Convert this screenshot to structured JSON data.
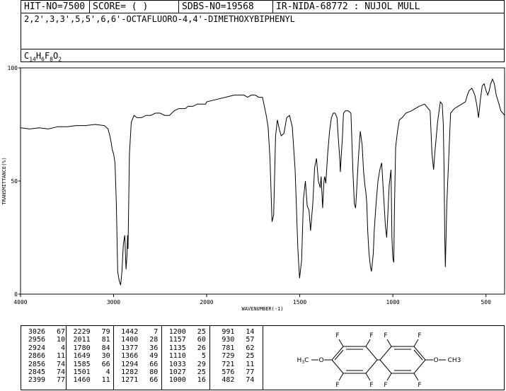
{
  "header": {
    "hit_no": "HIT-NO=7500",
    "score": "SCORE=  (   )",
    "sdbs_no": "SDBS-NO=19568",
    "ir_code": "IR-NIDA-68772 : NUJOL MULL",
    "compound_name": "2,2',3,3',5,5',6,6'-OCTAFLUORO-4,4'-DIMETHOXYBIPHENYL",
    "formula": {
      "c": "C",
      "c_n": "14",
      "h": "H",
      "h_n": "6",
      "f": "F",
      "f_n": "8",
      "o": "O",
      "o_n": "2"
    }
  },
  "chart_data": {
    "type": "line",
    "xlabel": "WAVENUMBER(-1)",
    "ylabel": "TRANSMITTANCE(%)",
    "xlim": [
      4000,
      400
    ],
    "ylim": [
      0,
      100
    ],
    "x_ticks": [
      "4000",
      "3000",
      "2000",
      "1500",
      "1000",
      "500"
    ],
    "x_tick_values": [
      4000,
      3000,
      2000,
      1500,
      1000,
      500
    ],
    "y_ticks": [
      "0",
      "50",
      "100"
    ],
    "y_tick_values": [
      0,
      50,
      100
    ],
    "series": [
      {
        "x": [
          4000,
          3900,
          3800,
          3700,
          3600,
          3500,
          3400,
          3300,
          3200,
          3100,
          3060,
          3040,
          3026,
          3015,
          3000,
          2985,
          2970,
          2956,
          2940,
          2924,
          2910,
          2895,
          2880,
          2866,
          2856,
          2850,
          2845,
          2830,
          2810,
          2780,
          2750,
          2700,
          2650,
          2600,
          2550,
          2500,
          2450,
          2400,
          2399,
          2350,
          2300,
          2250,
          2229,
          2200,
          2150,
          2100,
          2050,
          2011,
          2000,
          1950,
          1900,
          1850,
          1800,
          1780,
          1760,
          1740,
          1720,
          1700,
          1680,
          1670,
          1660,
          1649,
          1640,
          1630,
          1620,
          1610,
          1600,
          1585,
          1570,
          1555,
          1540,
          1525,
          1510,
          1501,
          1490,
          1480,
          1470,
          1460,
          1450,
          1442,
          1430,
          1420,
          1410,
          1400,
          1390,
          1385,
          1377,
          1370,
          1366,
          1360,
          1350,
          1340,
          1330,
          1320,
          1310,
          1300,
          1294,
          1285,
          1282,
          1278,
          1271,
          1265,
          1255,
          1240,
          1225,
          1215,
          1207,
          1200,
          1195,
          1185,
          1175,
          1165,
          1157,
          1150,
          1145,
          1140,
          1135,
          1128,
          1120,
          1115,
          1110,
          1105,
          1100,
          1090,
          1080,
          1070,
          1060,
          1050,
          1040,
          1033,
          1027,
          1020,
          1010,
          1005,
          1000,
          995,
          991,
          985,
          975,
          965,
          950,
          930,
          900,
          860,
          830,
          800,
          790,
          781,
          775,
          760,
          745,
          735,
          729,
          725,
          721,
          718,
          710,
          690,
          670,
          650,
          630,
          610,
          600,
          590,
          576,
          570,
          560,
          550,
          540,
          530,
          520,
          510,
          500,
          490,
          482,
          475,
          465,
          455,
          445,
          430,
          420,
          410,
          400
        ],
        "values": [
          73.5,
          73,
          73.5,
          73,
          74,
          74,
          74.5,
          74.5,
          75,
          74.5,
          73,
          70,
          67,
          64,
          62,
          58,
          40,
          10,
          6,
          4,
          10,
          22,
          26,
          11,
          17,
          26,
          20,
          62,
          76,
          79,
          78,
          78,
          79,
          79,
          80,
          80,
          79,
          79,
          79,
          81,
          82,
          82,
          82,
          83,
          83,
          84,
          84,
          84,
          85,
          86,
          87,
          88,
          88,
          87,
          88,
          88,
          87,
          87,
          79,
          74,
          60,
          32,
          35,
          70,
          77,
          73,
          70,
          71,
          78,
          79,
          74,
          55,
          20,
          7,
          15,
          42,
          50,
          39,
          37,
          28,
          40,
          56,
          60,
          50,
          47,
          52,
          38,
          50,
          52,
          49,
          62,
          72,
          78,
          80,
          80,
          78,
          70,
          60,
          54,
          60,
          69,
          80,
          81,
          81,
          80,
          55,
          40,
          38,
          45,
          60,
          72,
          66,
          54,
          48,
          45,
          40,
          28,
          18,
          12,
          10,
          14,
          18,
          28,
          40,
          50,
          55,
          58,
          44,
          30,
          25,
          35,
          48,
          55,
          25,
          16,
          14,
          40,
          65,
          72,
          77,
          78,
          80,
          81,
          83,
          84,
          81,
          62,
          55,
          62,
          76,
          85,
          84,
          75,
          55,
          25,
          12,
          40,
          80,
          82,
          83,
          84,
          85,
          88,
          90,
          91,
          90,
          88,
          84,
          78,
          86,
          92,
          93,
          90,
          88,
          90,
          93,
          95,
          93,
          88,
          84,
          81,
          80,
          79
        ]
      }
    ],
    "grid": false,
    "legend": "none"
  },
  "peak_table": [
    [
      [
        "3026",
        "67"
      ],
      [
        "2956",
        "10"
      ],
      [
        "2924",
        "4"
      ],
      [
        "2866",
        "11"
      ],
      [
        "2856",
        "74"
      ],
      [
        "2845",
        "74"
      ],
      [
        "2399",
        "77"
      ]
    ],
    [
      [
        "2229",
        "79"
      ],
      [
        "2011",
        "81"
      ],
      [
        "1780",
        "84"
      ],
      [
        "1649",
        "30"
      ],
      [
        "1585",
        "66"
      ],
      [
        "1501",
        "4"
      ],
      [
        "1460",
        "11"
      ]
    ],
    [
      [
        "1442",
        "7"
      ],
      [
        "1400",
        "28"
      ],
      [
        "1377",
        "36"
      ],
      [
        "1366",
        "49"
      ],
      [
        "1294",
        "66"
      ],
      [
        "1282",
        "80"
      ],
      [
        "1271",
        "66"
      ]
    ],
    [
      [
        "1200",
        "25"
      ],
      [
        "1157",
        "60"
      ],
      [
        "1135",
        "26"
      ],
      [
        "1110",
        "5"
      ],
      [
        "1033",
        "29"
      ],
      [
        "1027",
        "25"
      ],
      [
        "1000",
        "16"
      ]
    ],
    [
      [
        "991",
        "14"
      ],
      [
        "930",
        "57"
      ],
      [
        "781",
        "62"
      ],
      [
        "729",
        "25"
      ],
      [
        "721",
        "11"
      ],
      [
        "576",
        "77"
      ],
      [
        "482",
        "74"
      ]
    ]
  ],
  "structure": {
    "left_group": "H3C-O",
    "h": "H",
    "sub3": "3",
    "c": "C",
    "o": "O",
    "right_group": "CH3",
    "f": "F"
  }
}
